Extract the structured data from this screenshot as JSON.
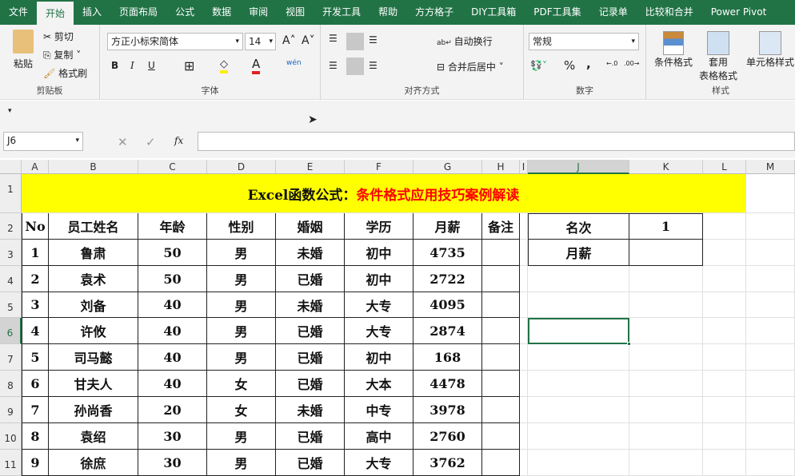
{
  "tabs": [
    "文件",
    "开始",
    "插入",
    "页面布局",
    "公式",
    "数据",
    "审阅",
    "视图",
    "开发工具",
    "帮助",
    "方方格子",
    "DIY工具箱",
    "PDF工具集",
    "记录单",
    "比较和合并",
    "Power Pivot"
  ],
  "active_tab": "开始",
  "clipboard": {
    "paste": "粘贴",
    "cut": "剪切",
    "copy": "复制",
    "format_painter": "格式刷",
    "label": "剪贴板"
  },
  "font": {
    "name": "方正小标宋简体",
    "size": "14",
    "bold": "B",
    "italic": "I",
    "underline": "U",
    "label": "字体",
    "grow": "A",
    "shrink": "A",
    "phonetic": "wén"
  },
  "alignment": {
    "wrap": "自动换行",
    "merge": "合并后居中",
    "label": "对齐方式"
  },
  "number": {
    "format": "常规",
    "percent": "%",
    "comma": ",",
    "label": "数字"
  },
  "styles": {
    "conditional": "条件格式",
    "table_format_1": "套用",
    "table_format_2": "表格格式",
    "cell_styles": "单元格样式",
    "label": "样式"
  },
  "formula_bar": {
    "name_box": "J6",
    "fx": "fx",
    "value": ""
  },
  "columns": [
    "A",
    "B",
    "C",
    "D",
    "E",
    "F",
    "G",
    "H",
    "I",
    "J",
    "K",
    "L",
    "M"
  ],
  "rows": [
    "1",
    "2",
    "3",
    "4",
    "5",
    "6",
    "7",
    "8",
    "9",
    "10",
    "11"
  ],
  "sheet": {
    "title_black": "Excel函数公式：",
    "title_red": "条件格式应用技巧案例解读",
    "title_bg": "#ffff00",
    "title_red_color": "#ff0000",
    "headers": [
      "No",
      "员工姓名",
      "年龄",
      "性别",
      "婚姻",
      "学历",
      "月薪",
      "备注"
    ],
    "data": [
      [
        "1",
        "鲁肃",
        "50",
        "男",
        "未婚",
        "初中",
        "4735",
        ""
      ],
      [
        "2",
        "袁术",
        "50",
        "男",
        "已婚",
        "初中",
        "2722",
        ""
      ],
      [
        "3",
        "刘备",
        "40",
        "男",
        "未婚",
        "大专",
        "4095",
        ""
      ],
      [
        "4",
        "许攸",
        "40",
        "男",
        "已婚",
        "大专",
        "2874",
        ""
      ],
      [
        "5",
        "司马懿",
        "40",
        "男",
        "已婚",
        "初中",
        "168",
        ""
      ],
      [
        "6",
        "甘夫人",
        "40",
        "女",
        "已婚",
        "大本",
        "4478",
        ""
      ],
      [
        "7",
        "孙尚香",
        "20",
        "女",
        "未婚",
        "中专",
        "3978",
        ""
      ],
      [
        "8",
        "袁绍",
        "30",
        "男",
        "已婚",
        "高中",
        "2760",
        ""
      ],
      [
        "9",
        "徐庶",
        "30",
        "男",
        "已婚",
        "大专",
        "3762",
        ""
      ]
    ],
    "side": {
      "rank_label": "名次",
      "rank_value": "1",
      "salary_label": "月薪",
      "salary_value": ""
    }
  },
  "colors": {
    "accent": "#217346",
    "selection": "#217346"
  }
}
